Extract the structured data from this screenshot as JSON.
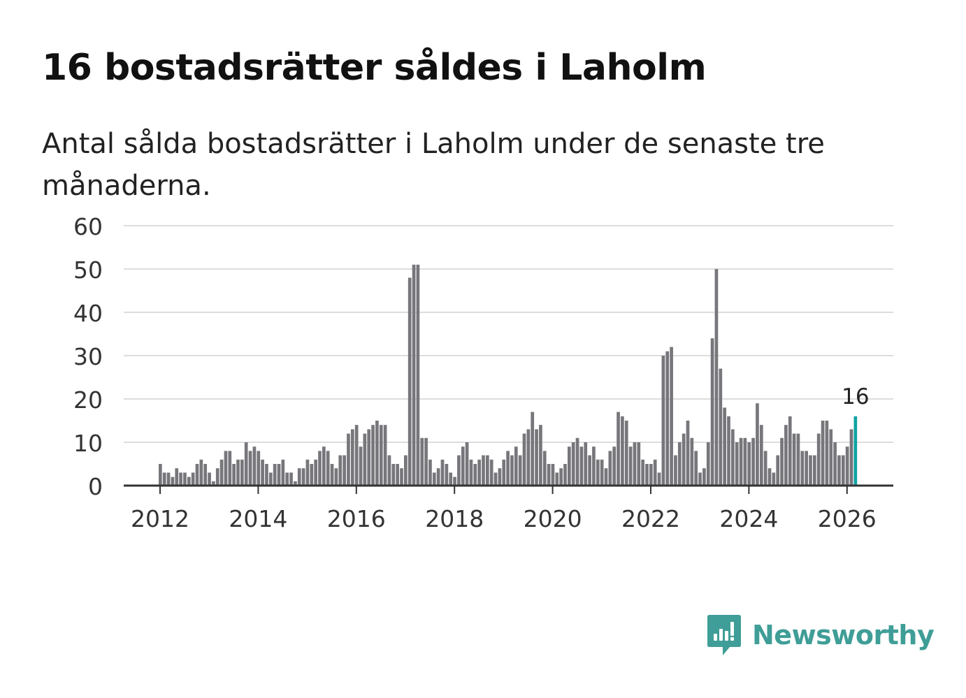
{
  "title": "16 bostadsrätter såldes i Laholm",
  "subtitle": "Antal sålda bostadsrätter i Laholm under de senaste tre månaderna.",
  "brand": {
    "name": "Newsworthy",
    "icon": "newsworthy-logo-icon"
  },
  "colors": {
    "bar": "#77767b",
    "highlight": "#11a3a3",
    "grid": "#dddddd",
    "axis": "#333333",
    "brand": "#3f9e97"
  },
  "chart_data": {
    "type": "bar",
    "title": "16 bostadsrätter såldes i Laholm",
    "xlabel": "",
    "ylabel": "",
    "ylim": [
      0,
      60
    ],
    "yticks": [
      0,
      10,
      20,
      30,
      40,
      50,
      60
    ],
    "xticks": [
      "2012",
      "2014",
      "2016",
      "2018",
      "2020",
      "2022",
      "2024",
      "2026"
    ],
    "start": "2012-01",
    "frequency": "monthly",
    "values": [
      5,
      3,
      3,
      2,
      4,
      3,
      3,
      2,
      3,
      5,
      6,
      5,
      3,
      1,
      4,
      6,
      8,
      8,
      5,
      6,
      6,
      10,
      8,
      9,
      8,
      6,
      5,
      3,
      5,
      5,
      6,
      3,
      3,
      1,
      4,
      4,
      6,
      5,
      6,
      8,
      9,
      8,
      5,
      4,
      7,
      7,
      12,
      13,
      14,
      9,
      12,
      13,
      14,
      15,
      14,
      14,
      7,
      5,
      5,
      4,
      7,
      48,
      51,
      51,
      11,
      11,
      6,
      3,
      4,
      6,
      5,
      3,
      2,
      7,
      9,
      10,
      6,
      5,
      6,
      7,
      7,
      6,
      3,
      4,
      6,
      8,
      7,
      9,
      7,
      12,
      13,
      17,
      13,
      14,
      8,
      5,
      5,
      3,
      4,
      5,
      9,
      10,
      11,
      9,
      10,
      7,
      9,
      6,
      6,
      4,
      8,
      9,
      17,
      16,
      15,
      9,
      10,
      10,
      6,
      5,
      5,
      6,
      3,
      30,
      31,
      32,
      7,
      10,
      12,
      15,
      11,
      8,
      3,
      4,
      10,
      34,
      50,
      27,
      18,
      16,
      13,
      10,
      11,
      11,
      10,
      11,
      19,
      14,
      8,
      4,
      3,
      7,
      11,
      14,
      16,
      12,
      12,
      8,
      8,
      7,
      7,
      12,
      15,
      15,
      13,
      10,
      7,
      7,
      9,
      13,
      16
    ],
    "highlight": {
      "index": 170,
      "label": "16"
    }
  }
}
